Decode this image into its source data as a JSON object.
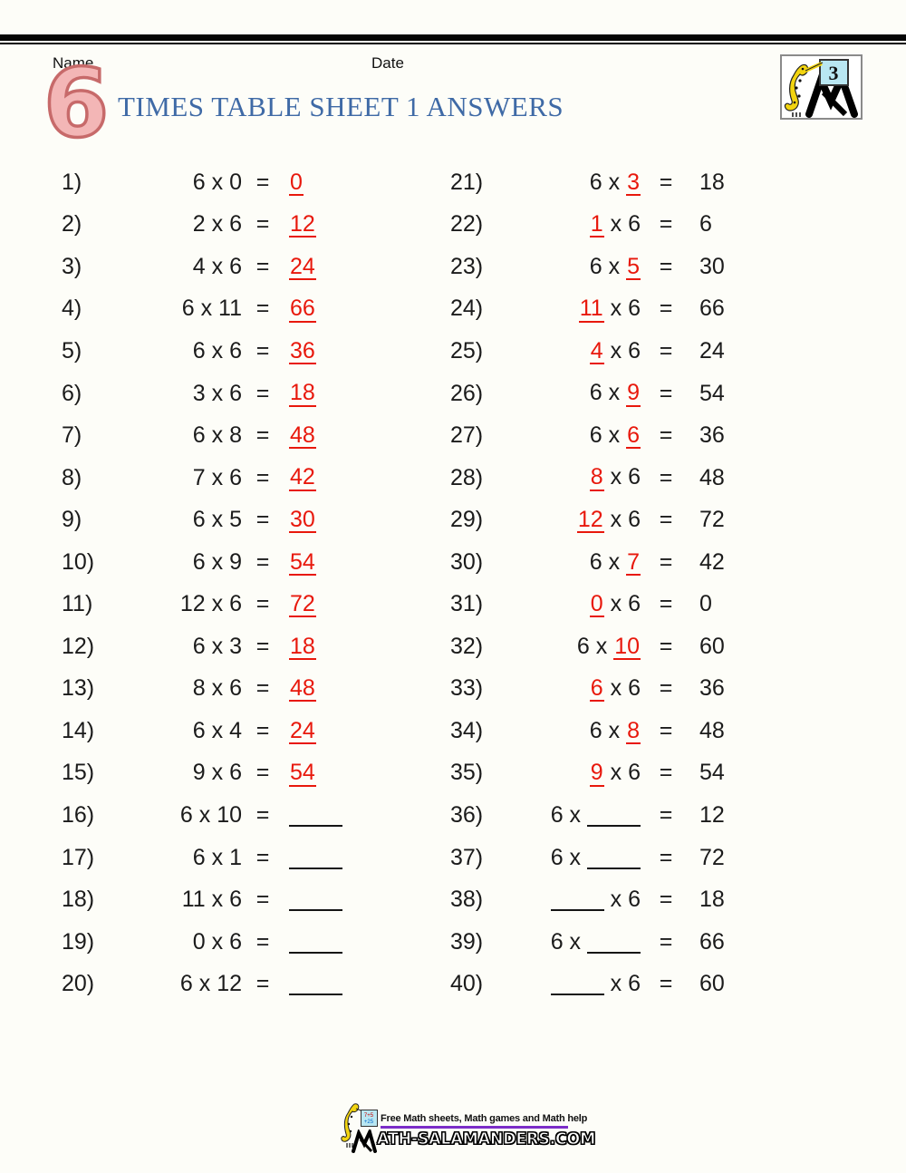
{
  "page": {
    "name_label": "Name",
    "date_label": "Date",
    "big_number": "6",
    "title": "TIMES TABLE SHEET 1 ANSWERS"
  },
  "colors": {
    "answer_red": "#e8180c",
    "title_blue": "#3f6aa6",
    "big_number_pink": "#f3b6b6",
    "footer_purple": "#7b2dc8"
  },
  "corner_logo": {
    "board_number": "3"
  },
  "footer": {
    "tagline": "Free Math sheets, Math games and Math help",
    "site_initial_icon": "m-easel-icon",
    "site_text": "ATH-SALAMANDERS.COM"
  },
  "problems": {
    "left": [
      {
        "num": "1)",
        "a": "6",
        "b": "0",
        "ans": "0",
        "red": "ans"
      },
      {
        "num": "2)",
        "a": "2",
        "b": "6",
        "ans": "12",
        "red": "ans"
      },
      {
        "num": "3)",
        "a": "4",
        "b": "6",
        "ans": "24",
        "red": "ans"
      },
      {
        "num": "4)",
        "a": "6",
        "b": "11",
        "ans": "66",
        "red": "ans"
      },
      {
        "num": "5)",
        "a": "6",
        "b": "6",
        "ans": "36",
        "red": "ans"
      },
      {
        "num": "6)",
        "a": "3",
        "b": "6",
        "ans": "18",
        "red": "ans"
      },
      {
        "num": "7)",
        "a": "6",
        "b": "8",
        "ans": "48",
        "red": "ans"
      },
      {
        "num": "8)",
        "a": "7",
        "b": "6",
        "ans": "42",
        "red": "ans"
      },
      {
        "num": "9)",
        "a": "6",
        "b": "5",
        "ans": "30",
        "red": "ans"
      },
      {
        "num": "10)",
        "a": "6",
        "b": "9",
        "ans": "54",
        "red": "ans"
      },
      {
        "num": "11)",
        "a": "12",
        "b": "6",
        "ans": "72",
        "red": "ans"
      },
      {
        "num": "12)",
        "a": "6",
        "b": "3",
        "ans": "18",
        "red": "ans"
      },
      {
        "num": "13)",
        "a": "8",
        "b": "6",
        "ans": "48",
        "red": "ans"
      },
      {
        "num": "14)",
        "a": "6",
        "b": "4",
        "ans": "24",
        "red": "ans"
      },
      {
        "num": "15)",
        "a": "9",
        "b": "6",
        "ans": "54",
        "red": "ans"
      },
      {
        "num": "16)",
        "a": "6",
        "b": "10",
        "ans": "",
        "blank": "ans"
      },
      {
        "num": "17)",
        "a": "6",
        "b": "1",
        "ans": "",
        "blank": "ans"
      },
      {
        "num": "18)",
        "a": "11",
        "b": "6",
        "ans": "",
        "blank": "ans"
      },
      {
        "num": "19)",
        "a": "0",
        "b": "6",
        "ans": "",
        "blank": "ans"
      },
      {
        "num": "20)",
        "a": "6",
        "b": "12",
        "ans": "",
        "blank": "ans"
      }
    ],
    "right": [
      {
        "num": "21)",
        "a": "6",
        "b": "3",
        "ans": "18",
        "red": "b"
      },
      {
        "num": "22)",
        "a": "1",
        "b": "6",
        "ans": "6",
        "red": "a"
      },
      {
        "num": "23)",
        "a": "6",
        "b": "5",
        "ans": "30",
        "red": "b"
      },
      {
        "num": "24)",
        "a": "11",
        "b": "6",
        "ans": "66",
        "red": "a"
      },
      {
        "num": "25)",
        "a": "4",
        "b": "6",
        "ans": "24",
        "red": "a"
      },
      {
        "num": "26)",
        "a": "6",
        "b": "9",
        "ans": "54",
        "red": "b"
      },
      {
        "num": "27)",
        "a": "6",
        "b": "6",
        "ans": "36",
        "red": "b"
      },
      {
        "num": "28)",
        "a": "8",
        "b": "6",
        "ans": "48",
        "red": "a"
      },
      {
        "num": "29)",
        "a": "12",
        "b": "6",
        "ans": "72",
        "red": "a"
      },
      {
        "num": "30)",
        "a": "6",
        "b": "7",
        "ans": "42",
        "red": "b"
      },
      {
        "num": "31)",
        "a": "0",
        "b": "6",
        "ans": "0",
        "red": "a"
      },
      {
        "num": "32)",
        "a": "6",
        "b": "10",
        "ans": "60",
        "red": "b"
      },
      {
        "num": "33)",
        "a": "6",
        "b": "6",
        "ans": "36",
        "red": "a"
      },
      {
        "num": "34)",
        "a": "6",
        "b": "8",
        "ans": "48",
        "red": "b"
      },
      {
        "num": "35)",
        "a": "9",
        "b": "6",
        "ans": "54",
        "red": "a"
      },
      {
        "num": "36)",
        "a": "6",
        "b": "",
        "ans": "12",
        "blank": "b"
      },
      {
        "num": "37)",
        "a": "6",
        "b": "",
        "ans": "72",
        "blank": "b"
      },
      {
        "num": "38)",
        "a": "",
        "b": "6",
        "ans": "18",
        "blank": "a"
      },
      {
        "num": "39)",
        "a": "6",
        "b": "",
        "ans": "66",
        "blank": "b"
      },
      {
        "num": "40)",
        "a": "",
        "b": "6",
        "ans": "60",
        "blank": "a"
      }
    ]
  }
}
